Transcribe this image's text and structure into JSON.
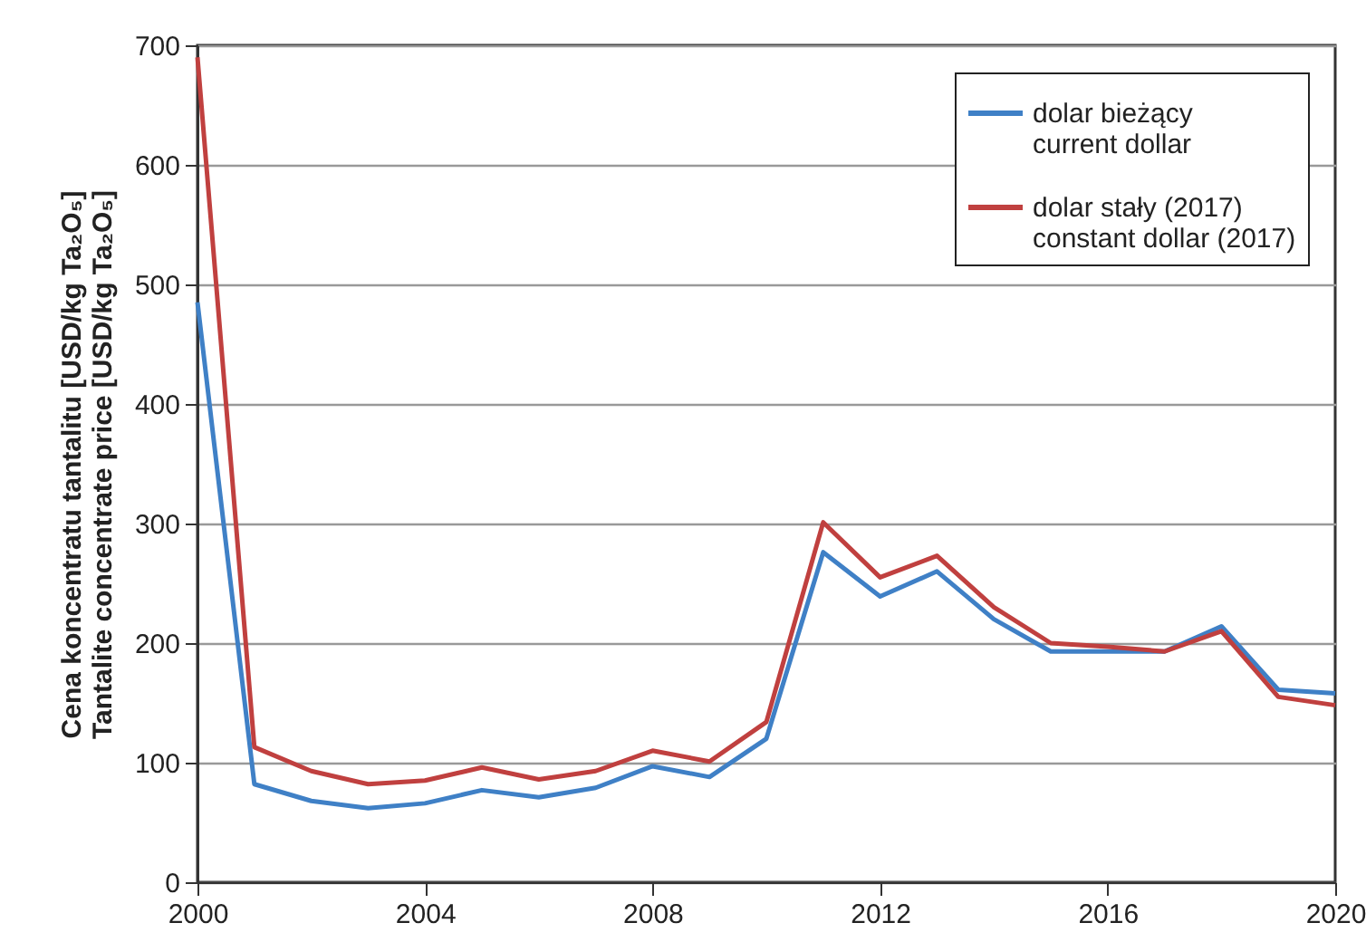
{
  "chart_data": {
    "type": "line",
    "ylabel": "Cena koncentratu tantalitu [USD/kg Ta₂O₅]\nTantalite concentrate price [USD/kg Ta₂O₅]",
    "x": [
      2000,
      2001,
      2002,
      2003,
      2004,
      2005,
      2006,
      2007,
      2008,
      2009,
      2010,
      2011,
      2012,
      2013,
      2014,
      2015,
      2016,
      2017,
      2018,
      2019,
      2020
    ],
    "series": [
      {
        "name": "dolar bieżący\ncurrent dollar",
        "color": "#3f80c6",
        "values": [
          485,
          82,
          68,
          62,
          66,
          77,
          71,
          79,
          97,
          88,
          120,
          276,
          239,
          260,
          220,
          193,
          193,
          193,
          214,
          161,
          158
        ]
      },
      {
        "name": "dolar stały (2017)\nconstant dollar (2017)",
        "color": "#c0403f",
        "values": [
          690,
          113,
          93,
          82,
          85,
          96,
          86,
          93,
          110,
          101,
          134,
          301,
          255,
          273,
          230,
          200,
          197,
          193,
          210,
          155,
          148
        ]
      }
    ],
    "xlim": [
      2000,
      2020
    ],
    "xticks": [
      2000,
      2004,
      2008,
      2012,
      2016,
      2020
    ],
    "ylim": [
      0,
      700
    ],
    "yticks": [
      0,
      100,
      200,
      300,
      400,
      500,
      600,
      700
    ],
    "grid": "y",
    "legend": "top right",
    "marker": "none",
    "line_style": "solid"
  }
}
